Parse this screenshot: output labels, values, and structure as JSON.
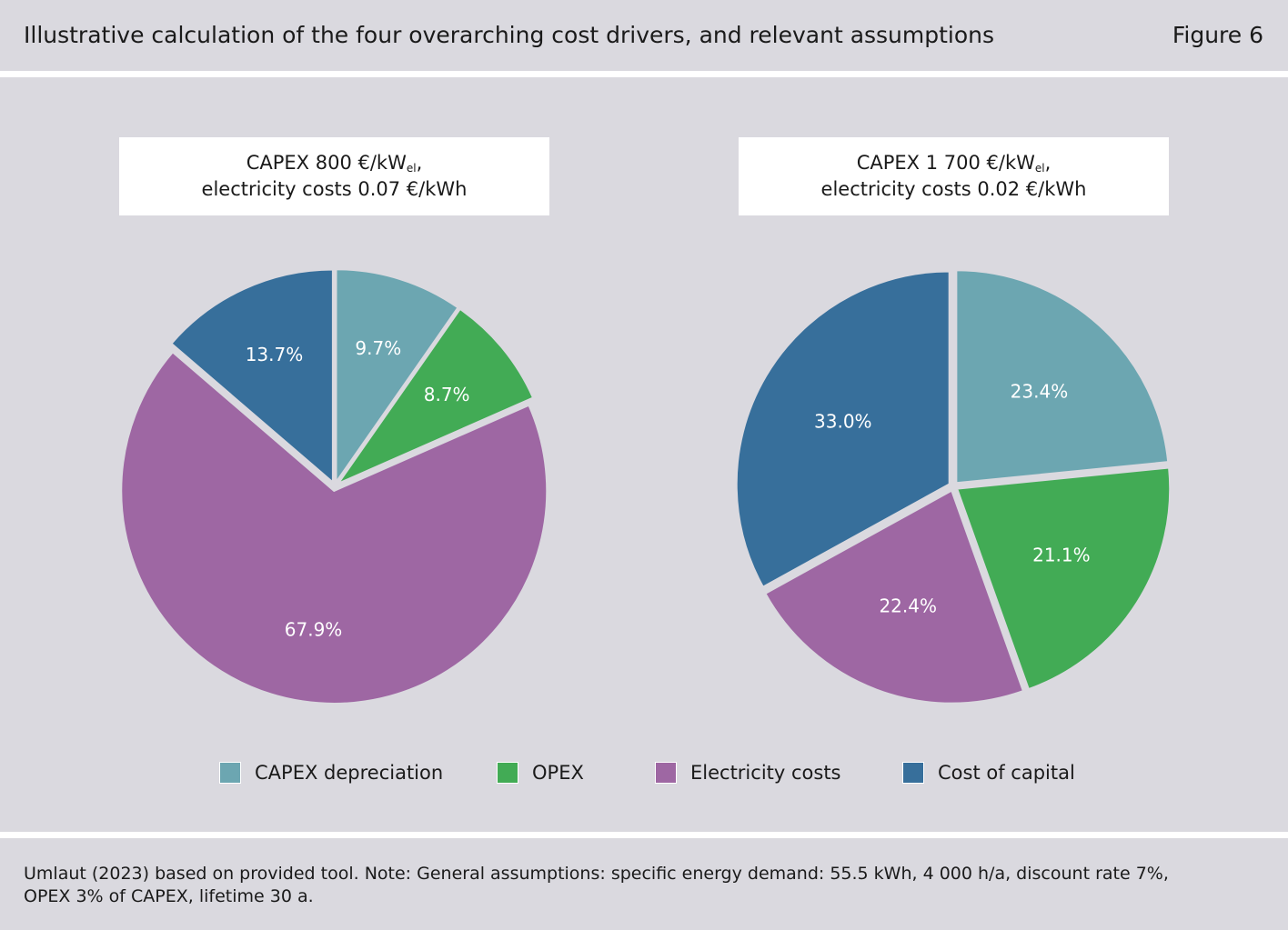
{
  "header": {
    "title": "Illustrative calculation of the four overarching cost drivers, and relevant assumptions",
    "figure_label": "Figure 6"
  },
  "colors": {
    "CAPEX depreciation": "#6ca6b1",
    "OPEX": "#42ab55",
    "Electricity costs": "#9e67a3",
    "Cost of capital": "#376f9b",
    "background": "#dad9df"
  },
  "chart_data": [
    {
      "type": "pie",
      "title_line1_main": "CAPEX 800 €/kW",
      "title_line1_sub": "el",
      "title_line1_end": ",",
      "title_line2": "electricity costs 0.07 €/kWh",
      "categories": [
        "CAPEX depreciation",
        "OPEX",
        "Electricity costs",
        "Cost of capital"
      ],
      "values": [
        9.7,
        8.7,
        67.9,
        13.7
      ],
      "labels": [
        "9.7%",
        "8.7%",
        "67.9%",
        "13.7%"
      ],
      "start": "12 o'clock",
      "direction": "clockwise"
    },
    {
      "type": "pie",
      "title_line1_main": "CAPEX 1 700 €/kW",
      "title_line1_sub": "el",
      "title_line1_end": ",",
      "title_line2": "electricity costs 0.02 €/kWh",
      "categories": [
        "CAPEX depreciation",
        "OPEX",
        "Electricity costs",
        "Cost of capital"
      ],
      "values": [
        23.4,
        21.1,
        22.4,
        33.0
      ],
      "labels": [
        "23.4%",
        "21.1%",
        "22.4%",
        "33.0%"
      ],
      "start": "12 o'clock",
      "direction": "clockwise"
    }
  ],
  "legend": [
    {
      "label": "CAPEX depreciation",
      "color": "#6ca6b1"
    },
    {
      "label": "OPEX",
      "color": "#42ab55"
    },
    {
      "label": "Electricity costs",
      "color": "#9e67a3"
    },
    {
      "label": "Cost of capital",
      "color": "#376f9b"
    }
  ],
  "footer": {
    "note_line1": "Umlaut (2023) based on provided tool. Note: General assumptions: specific energy demand: 55.5 kWh, 4 000 h/a, discount rate 7%,",
    "note_line2": "OPEX 3% of CAPEX, lifetime 30 a."
  }
}
